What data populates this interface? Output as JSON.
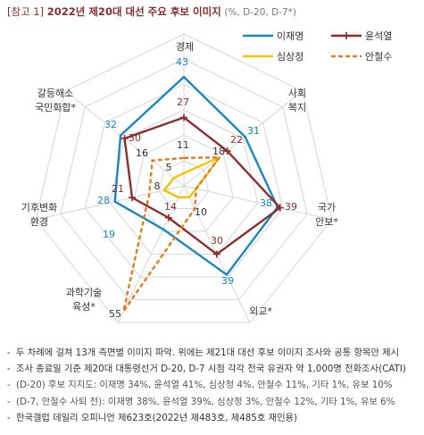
{
  "title": {
    "tag": "[참고 1]",
    "main": "2022년 제20대 대선 주요 후보 이미지",
    "sub": "(%, D-20, D-7*)"
  },
  "chart_data": {
    "type": "radar",
    "title": "2022년 제20대 대선 주요 후보 이미지",
    "categories": [
      "경제",
      "사회\n복지",
      "국가\n안보*",
      "외교*",
      "과학기술\n육성*",
      "기후변화\n환경",
      "갈등해소\n국민화합*"
    ],
    "rmax": 60,
    "grid_levels": [
      10,
      20,
      30,
      40,
      50,
      60
    ],
    "series": [
      {
        "name": "이재명",
        "color": "#1a86c4",
        "style": "solid",
        "marker": "none",
        "values": [
          43,
          31,
          38,
          39,
          19,
          28,
          32
        ]
      },
      {
        "name": "윤석열",
        "color": "#8b2e2e",
        "style": "solid",
        "marker": "plus",
        "values": [
          27,
          22,
          39,
          30,
          14,
          21,
          30
        ]
      },
      {
        "name": "심상정",
        "color": "#f2c500",
        "style": "solid",
        "marker": "none",
        "values": [
          5,
          18,
          5,
          5,
          5,
          8,
          5
        ]
      },
      {
        "name": "안철수",
        "color": "#e07b20",
        "style": "dashed",
        "marker": "none",
        "values": [
          11,
          18,
          5,
          10,
          55,
          14,
          16
        ]
      }
    ],
    "data_labels": [
      {
        "text": "43",
        "series": 0,
        "axis": 0
      },
      {
        "text": "31",
        "series": 0,
        "axis": 1
      },
      {
        "text": "38",
        "series": 0,
        "axis": 2
      },
      {
        "text": "39",
        "series": 0,
        "axis": 3
      },
      {
        "text": "19",
        "series": 0,
        "axis": 4
      },
      {
        "text": "28",
        "series": 0,
        "axis": 5
      },
      {
        "text": "32",
        "series": 0,
        "axis": 6
      },
      {
        "text": "27",
        "series": 1,
        "axis": 0
      },
      {
        "text": "22",
        "series": 1,
        "axis": 1
      },
      {
        "text": "39",
        "series": 1,
        "axis": 2
      },
      {
        "text": "30",
        "series": 1,
        "axis": 3
      },
      {
        "text": "14",
        "series": 1,
        "axis": 4
      },
      {
        "text": "21",
        "series": 1,
        "axis": 5
      },
      {
        "text": "30",
        "series": 1,
        "axis": 6
      },
      {
        "text": "11",
        "series": 3,
        "axis": 0
      },
      {
        "text": "18",
        "series": 3,
        "axis": 1
      },
      {
        "text": "10",
        "series": 3,
        "axis": 3
      },
      {
        "text": "55",
        "series": 3,
        "axis": 4
      },
      {
        "text": "16",
        "series": 3,
        "axis": 6
      },
      {
        "text": "5",
        "series": 2,
        "axis": 0
      },
      {
        "text": "8",
        "series": 2,
        "axis": 5
      }
    ],
    "legend_position": "top-right",
    "grid": true
  },
  "footnotes": [
    "두 차례에 걸쳐 13개 측면별 이미지 파악. 위에는 제21대 대선 후보 이미지 조사와 공통 항목만 제시",
    "조사 종료일 기준 제20대 대통령선거 D-20, D-7 시점 각각 전국 유권자 약 1,000명 전화조사(CATI)",
    "(D-20) 후보 지지도: 이재명 34%, 윤석열 41%, 심상정 4%, 안철수 11%, 기타 1%, 유보 10%",
    "(D-7, 안철수 사퇴 전): 이재명 38%, 윤석열 39%, 심상정 3%, 안철수 12%, 기타 1%, 유보 6%",
    "한국갤럽 데일리 오피니언 제623호(2022년 제483호, 제485호 재인용)"
  ]
}
